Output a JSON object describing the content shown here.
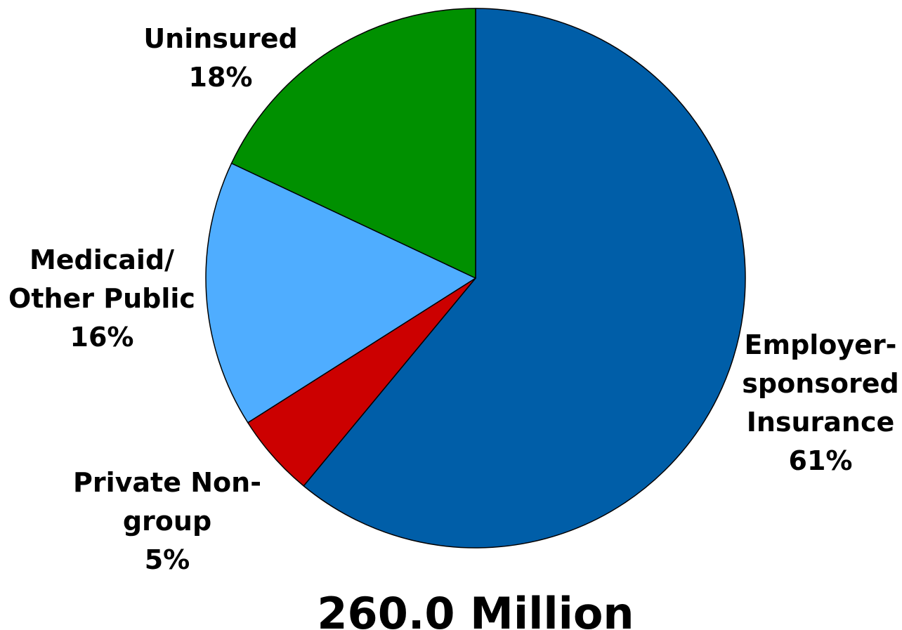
{
  "chart_data": {
    "type": "pie",
    "total_label": "260.0 Million",
    "slices": [
      {
        "label_lines": [
          "Employer-",
          "sponsored",
          "Insurance"
        ],
        "pct_label": "61%",
        "value": 61,
        "color": "#005ea8"
      },
      {
        "label_lines": [
          "Private Non-",
          "group"
        ],
        "pct_label": "5%",
        "value": 5,
        "color": "#cc0000"
      },
      {
        "label_lines": [
          "Medicaid/",
          "Other Public"
        ],
        "pct_label": "16%",
        "value": 16,
        "color": "#4fadff"
      },
      {
        "label_lines": [
          "Uninsured"
        ],
        "pct_label": "18%",
        "value": 18,
        "color": "#009000"
      }
    ]
  }
}
